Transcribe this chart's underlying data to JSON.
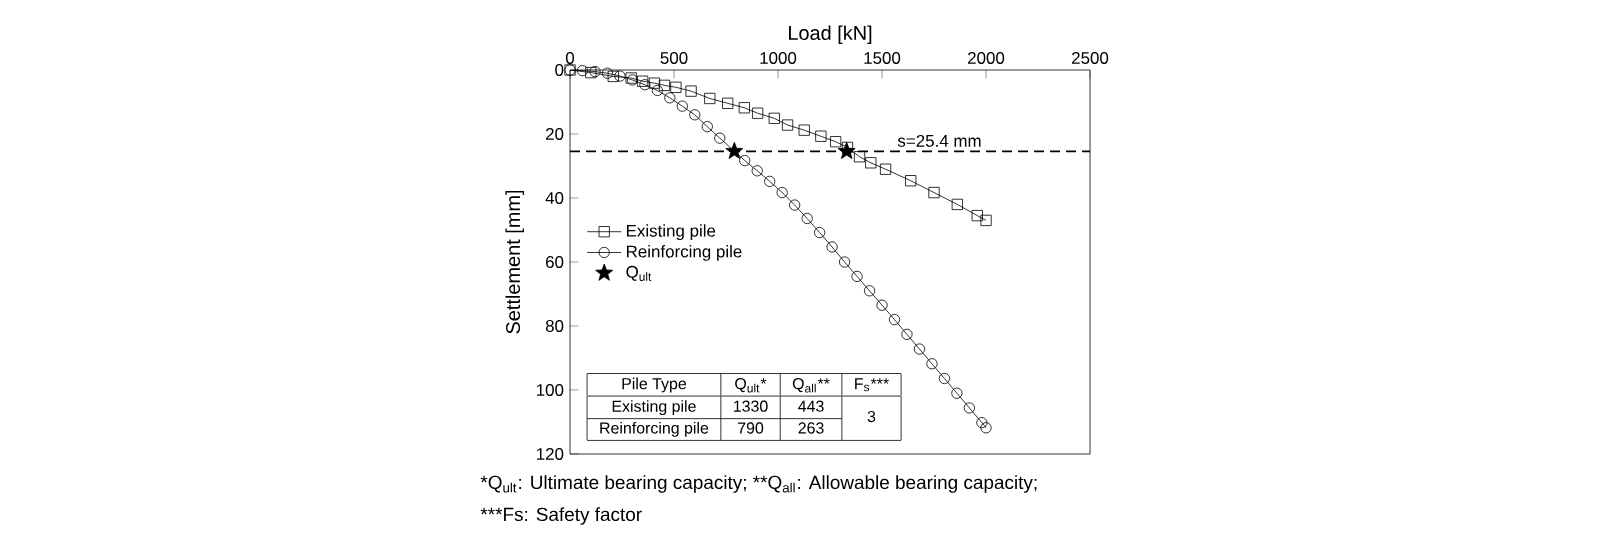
{
  "chart_data": {
    "type": "line",
    "xlabel": "Load [kN]",
    "ylabel": "Settlement [mm]",
    "xlim": [
      0,
      2500
    ],
    "ylim": [
      120,
      0
    ],
    "xticks": [
      0,
      500,
      1000,
      1500,
      2000,
      2500
    ],
    "yticks": [
      0,
      20,
      40,
      60,
      80,
      100,
      120
    ],
    "grid": false,
    "legend": "left",
    "series": [
      {
        "name": "Existing pile",
        "marker": "square",
        "color": "#000000",
        "x": [
          0,
          100,
          208,
          294,
          349,
          406,
          454,
          509,
          582,
          672,
          758,
          838,
          902,
          982,
          1046,
          1126,
          1206,
          1277,
          1334,
          1392,
          1446,
          1517,
          1638,
          1750,
          1862,
          1958,
          2000
        ],
        "values": [
          0,
          0.8,
          2,
          2.5,
          3.5,
          4.1,
          4.8,
          5.4,
          6.6,
          8.9,
          10.4,
          11.8,
          13.5,
          15.1,
          17.2,
          18.8,
          20.7,
          22.4,
          24.2,
          27.1,
          29,
          31,
          34.6,
          38.3,
          42,
          45.5,
          47
        ]
      },
      {
        "name": "Reinforcing pile",
        "marker": "circle",
        "color": "#000000",
        "x": [
          0,
          60,
          120,
          180,
          240,
          300,
          360,
          420,
          480,
          540,
          600,
          660,
          720,
          780,
          840,
          900,
          960,
          1020,
          1080,
          1140,
          1200,
          1260,
          1320,
          1380,
          1440,
          1500,
          1560,
          1620,
          1680,
          1740,
          1800,
          1860,
          1920,
          1980,
          2000
        ],
        "values": [
          0,
          0.2,
          0.5,
          1,
          1.9,
          3.1,
          4.6,
          6.4,
          8.7,
          11.3,
          14,
          17.7,
          21.3,
          null,
          28.3,
          31.5,
          34.8,
          38.3,
          42.2,
          46.4,
          50.8,
          55.3,
          60,
          64.5,
          69,
          73.5,
          78,
          82.6,
          87.2,
          91.8,
          96.4,
          101,
          105.6,
          110.2,
          111.8
        ]
      },
      {
        "name": "Q$_{ult}$",
        "type": "scatter",
        "marker": "star",
        "color": "#000000",
        "x": [
          790,
          1330
        ],
        "values": [
          25.4,
          25.4
        ]
      }
    ],
    "ref_lines": [
      {
        "axis": "y",
        "value": 25.4,
        "label": "s=25.4 mm",
        "line_style": "dashed"
      }
    ],
    "annotations": [
      "Pile Type",
      "Q$_{ult}$*",
      "Q$_{all}$**",
      "F$_{s}$***",
      "Existing pile",
      "1330",
      "443",
      "Reinforcing pile",
      "790",
      "263",
      "3",
      "*Q$_{ult}$: Ultimate bearing capacity; **Q$_{all}$: Allowable bearing capacity;",
      "***Fs: Safety factor"
    ]
  }
}
